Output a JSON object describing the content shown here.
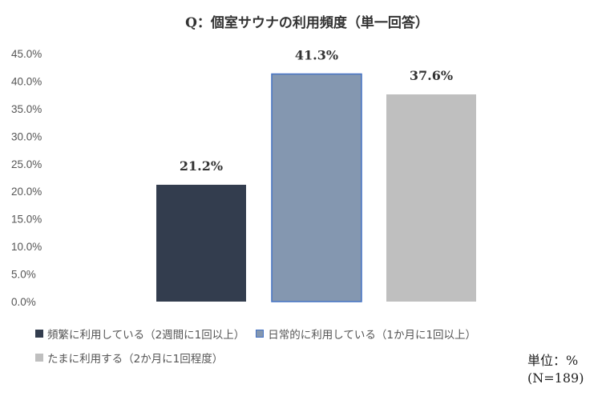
{
  "chart_data": {
    "type": "bar",
    "title": "Q：個室サウナの利用頻度（単一回答）",
    "categories": [
      "頻繁に利用している（2週間に1回以上）",
      "日常的に利用している（1か月に1回以上）",
      "たまに利用する（2か月に1回程度）"
    ],
    "values": [
      21.2,
      41.3,
      37.6
    ],
    "value_labels": [
      "21.2%",
      "41.3%",
      "37.6%"
    ],
    "colors": [
      "#333d4e",
      "#8497b0",
      "#bfbfbf"
    ],
    "ylim": [
      0,
      45
    ],
    "y_ticks": [
      "0.0%",
      "5.0%",
      "10.0%",
      "15.0%",
      "20.0%",
      "25.0%",
      "30.0%",
      "35.0%",
      "40.0%",
      "45.0%"
    ],
    "grid": false,
    "legend_position": "bottom-left"
  },
  "note": {
    "unit": "単位：%",
    "n": "(N=189)"
  }
}
